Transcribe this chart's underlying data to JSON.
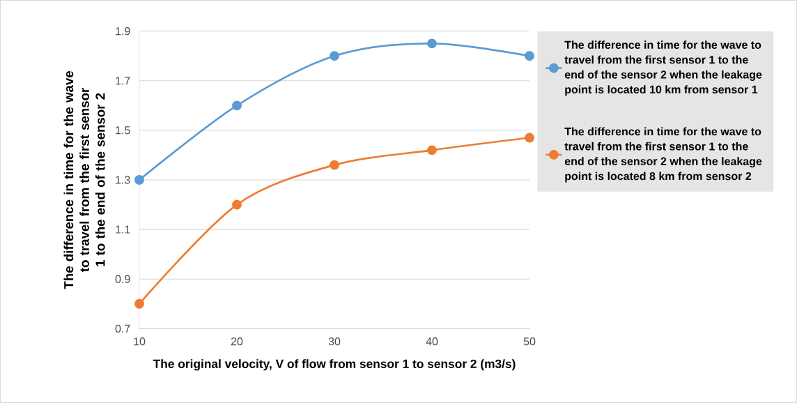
{
  "chart_data": {
    "type": "line",
    "xlabel": "The original velocity, V of flow from sensor 1 to sensor 2 (m3/s)",
    "ylabel": "The difference in time for the wave to travel from the first sensor 1 to the end of the sensor 2",
    "x": [
      10,
      20,
      30,
      40,
      50
    ],
    "xlim": [
      10,
      50
    ],
    "xticks": [
      10,
      20,
      30,
      40,
      50
    ],
    "ylim": [
      0.7,
      1.9
    ],
    "yticks": [
      0.7,
      0.9,
      1.1,
      1.3,
      1.5,
      1.7,
      1.9
    ],
    "grid": "y",
    "legend": "right",
    "marker": "circle",
    "line_style": "solid",
    "series": [
      {
        "name": "The difference in time for the wave to travel from the first sensor 1 to the end of the sensor 2 when the leakage point is located 10 km from sensor 1",
        "color": "#5b9bd5",
        "values": [
          1.3,
          1.6,
          1.8,
          1.85,
          1.8
        ]
      },
      {
        "name": "The difference in time for the wave to travel from the first sensor 1 to the end of the sensor 2 when the leakage point is located 8 km from sensor 2",
        "color": "#ed7d31",
        "values": [
          0.8,
          1.2,
          1.36,
          1.42,
          1.47
        ]
      }
    ]
  }
}
